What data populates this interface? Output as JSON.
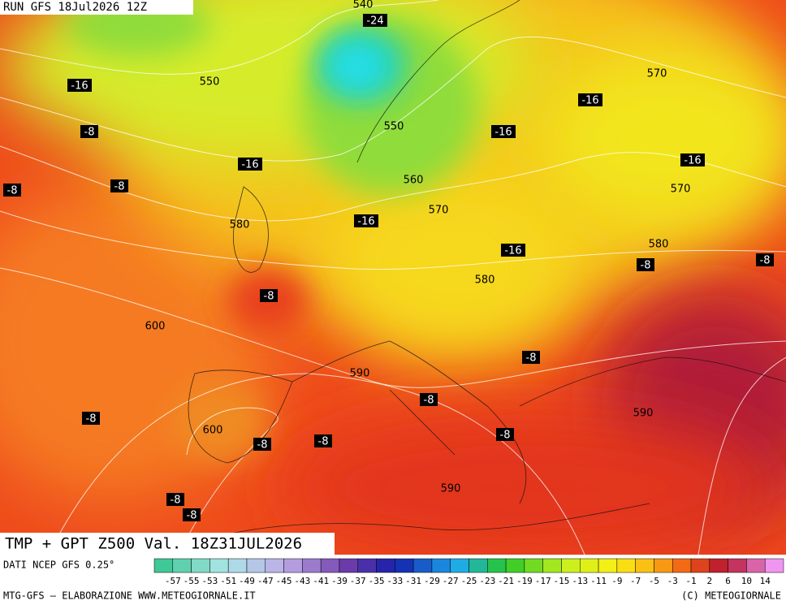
{
  "header": {
    "run": "RUN GFS 18Jul2026 12Z"
  },
  "map": {
    "contour_labels": [
      540,
      550,
      550,
      560,
      570,
      570,
      570,
      580,
      580,
      580,
      600,
      590,
      590,
      600,
      590
    ],
    "temperature_labels": [
      -24,
      -16,
      -16,
      -16,
      -16,
      -16,
      -16,
      -16,
      -8,
      -8,
      -8,
      -8,
      -8,
      -8,
      -8,
      -8,
      -8,
      -8,
      -8,
      -8,
      -8,
      -8,
      -8
    ]
  },
  "footer": {
    "title": "TMP + GPT Z500 Val. 18Z31JUL2026",
    "source": "DATI NCEP GFS 0.25°",
    "credit": "MTG-GFS — ELABORAZIONE WWW.METEOGIORNALE.IT",
    "copyright": "(C) METEOGIORNALE",
    "colorbar_labels": [
      -57,
      -55,
      -53,
      -51,
      -49,
      -47,
      -45,
      -43,
      -41,
      -39,
      -37,
      -35,
      -33,
      -31,
      -29,
      -27,
      -25,
      -23,
      -21,
      -19,
      -17,
      -15,
      -13,
      -11,
      -9,
      -7,
      -5,
      -3,
      -1,
      2,
      6,
      10,
      14
    ]
  }
}
